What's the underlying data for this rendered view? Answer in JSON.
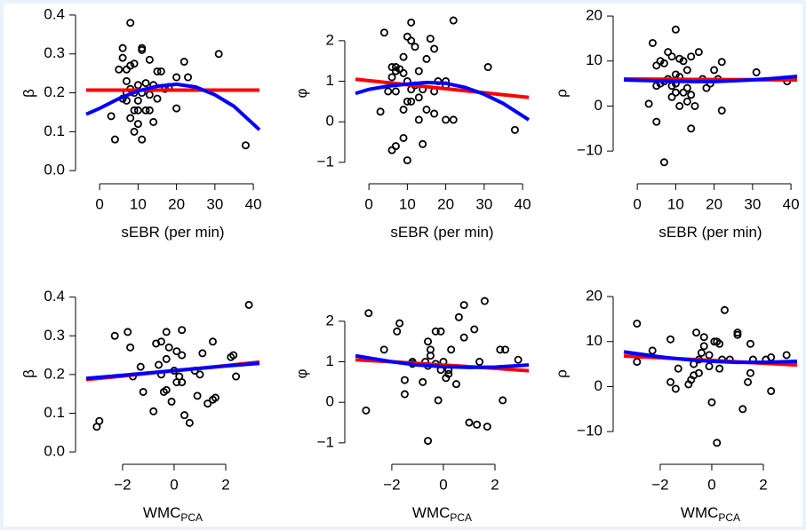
{
  "chart_data": [
    {
      "type": "scatter",
      "xlabel": "sEBR (per min)",
      "ylabel": "β",
      "xlim": [
        -3.5,
        41.6
      ],
      "ylim": [
        -0.011,
        0.409
      ],
      "xticks": [
        0,
        10,
        20,
        30,
        40
      ],
      "yticks": [
        {
          "value": 0,
          "label": "0.0"
        },
        0.1,
        0.2,
        0.3,
        0.4
      ],
      "series": [
        {
          "type": "scatter",
          "color": "#000000",
          "x": [
            8,
            6,
            11,
            11,
            6,
            9,
            8,
            13,
            5,
            7,
            15,
            16,
            22,
            20,
            23,
            31,
            7,
            10,
            12,
            14,
            18,
            8,
            7,
            9,
            11,
            13,
            6,
            7,
            10,
            15,
            17,
            9,
            10,
            12,
            13,
            20,
            14,
            8,
            3,
            10,
            9,
            11,
            4,
            38
          ],
          "values": [
            0.38,
            0.315,
            0.315,
            0.31,
            0.29,
            0.275,
            0.27,
            0.285,
            0.26,
            0.26,
            0.255,
            0.255,
            0.28,
            0.24,
            0.24,
            0.3,
            0.23,
            0.22,
            0.225,
            0.22,
            0.215,
            0.21,
            0.2,
            0.2,
            0.2,
            0.195,
            0.185,
            0.18,
            0.18,
            0.185,
            0.21,
            0.155,
            0.155,
            0.155,
            0.155,
            0.16,
            0.125,
            0.135,
            0.14,
            0.12,
            0.1,
            0.08,
            0.08,
            0.065
          ]
        },
        {
          "type": "line",
          "color": "#ff0000",
          "x": [
            -3.5,
            41.6
          ],
          "values": [
            0.207,
            0.207
          ]
        },
        {
          "type": "line",
          "color": "#0000ff",
          "x": [
            -3.5,
            0,
            5,
            10,
            15,
            20,
            25,
            30,
            35,
            41.6
          ],
          "values": [
            0.145,
            0.16,
            0.185,
            0.205,
            0.217,
            0.222,
            0.215,
            0.195,
            0.165,
            0.105
          ]
        }
      ]
    },
    {
      "type": "scatter",
      "xlabel": "sEBR (per min)",
      "ylabel": "φ",
      "xlim": [
        -3.5,
        41.6
      ],
      "ylim": [
        -1.31,
        2.72
      ],
      "xticks": [
        0,
        10,
        20,
        30,
        40
      ],
      "yticks": [
        {
          "value": -1,
          "label": "−1"
        },
        0,
        1,
        2
      ],
      "series": [
        {
          "type": "scatter",
          "color": "#000000",
          "x": [
            11,
            22,
            4,
            10,
            11,
            16,
            17,
            12,
            9,
            15,
            7,
            8,
            6,
            7,
            6,
            9,
            13,
            10,
            18,
            20,
            31,
            12,
            14,
            5,
            7,
            11,
            17,
            20,
            13,
            10,
            11,
            3,
            9,
            15,
            17,
            20,
            22,
            13,
            9,
            7,
            14,
            10,
            38,
            6
          ],
          "values": [
            2.45,
            2.5,
            2.2,
            2.1,
            2.0,
            2.05,
            1.8,
            1.85,
            1.6,
            1.55,
            1.35,
            1.3,
            1.35,
            1.25,
            1.1,
            1.2,
            1.25,
            1.0,
            1.0,
            1.0,
            1.35,
            0.9,
            0.8,
            0.75,
            0.75,
            0.8,
            0.75,
            0.9,
            0.6,
            0.5,
            0.5,
            0.25,
            0.3,
            0.3,
            0.2,
            0.05,
            0.05,
            0.05,
            -0.4,
            -0.6,
            -0.55,
            -0.95,
            -0.2,
            -0.7
          ]
        },
        {
          "type": "line",
          "color": "#ff0000",
          "x": [
            -3.5,
            41.6
          ],
          "values": [
            1.05,
            0.6
          ]
        },
        {
          "type": "line",
          "color": "#0000ff",
          "x": [
            -3.5,
            0,
            5,
            10,
            15,
            20,
            25,
            30,
            35,
            41.6
          ],
          "values": [
            0.7,
            0.8,
            0.88,
            0.93,
            0.97,
            0.95,
            0.85,
            0.68,
            0.45,
            0.05
          ]
        }
      ]
    },
    {
      "type": "scatter",
      "xlabel": "sEBR (per min)",
      "ylabel": "ρ",
      "xlim": [
        -3.5,
        41.6
      ],
      "ylim": [
        -15.3,
        21
      ],
      "xticks": [
        0,
        10,
        20,
        30,
        40
      ],
      "yticks": [
        {
          "value": -10,
          "label": "−10"
        },
        0,
        10,
        20
      ],
      "series": [
        {
          "type": "scatter",
          "color": "#000000",
          "x": [
            10,
            4,
            22,
            16,
            14,
            8,
            9,
            11,
            6,
            7,
            12,
            5,
            13,
            20,
            31,
            10,
            11,
            8,
            6,
            7,
            9,
            13,
            18,
            19,
            21,
            5,
            10,
            12,
            9,
            14,
            13,
            11,
            3,
            15,
            22,
            5,
            14,
            7,
            39,
            10,
            17
          ],
          "values": [
            17,
            14,
            9.8,
            12,
            11,
            12,
            11,
            10.5,
            10,
            9.5,
            10,
            9,
            8,
            8,
            7.5,
            7,
            6.5,
            6,
            5,
            5.5,
            4.5,
            4,
            4,
            5,
            6,
            4.5,
            3,
            3,
            2,
            2.5,
            1,
            0,
            0.5,
            0,
            -1,
            -3.5,
            -5,
            -12.5,
            5.5,
            5,
            6
          ]
        },
        {
          "type": "line",
          "color": "#ff0000",
          "x": [
            -3.5,
            41.6
          ],
          "values": [
            6.0,
            5.8
          ]
        },
        {
          "type": "line",
          "color": "#0000ff",
          "x": [
            -3.5,
            0,
            5,
            10,
            15,
            20,
            25,
            30,
            35,
            41.6
          ],
          "values": [
            5.8,
            5.7,
            5.6,
            5.5,
            5.45,
            5.45,
            5.6,
            5.8,
            6.1,
            6.6
          ]
        }
      ]
    },
    {
      "type": "scatter",
      "xlabel": "WMC",
      "xlabel_sub": "PCA",
      "ylabel": "β",
      "xlim": [
        -3.41,
        3.31
      ],
      "ylim": [
        -0.009,
        0.413
      ],
      "xticks": [
        {
          "value": -2,
          "label": "−2"
        },
        0,
        2
      ],
      "yticks": [
        {
          "value": 0,
          "label": "0.0"
        },
        0.1,
        0.2,
        0.3,
        0.4
      ],
      "series": [
        {
          "type": "scatter",
          "color": "#000000",
          "x": [
            2.9,
            -1.8,
            -2.3,
            0.3,
            -0.3,
            -0.5,
            -0.7,
            1.5,
            -0.2,
            -1.7,
            0.1,
            0.3,
            1.1,
            2.2,
            2.3,
            -0.3,
            -0.6,
            -1.3,
            0,
            0.8,
            -0.5,
            0.2,
            1.0,
            -1.6,
            2.4,
            0.1,
            0.3,
            -0.3,
            -0.4,
            -1.2,
            1.5,
            1.6,
            1.3,
            0.9,
            -0.1,
            0.4,
            -0.8,
            0.6,
            -2.9,
            -3.0
          ],
          "values": [
            0.38,
            0.31,
            0.3,
            0.315,
            0.31,
            0.285,
            0.28,
            0.285,
            0.27,
            0.27,
            0.26,
            0.25,
            0.255,
            0.245,
            0.25,
            0.24,
            0.225,
            0.22,
            0.21,
            0.21,
            0.2,
            0.195,
            0.2,
            0.195,
            0.195,
            0.18,
            0.18,
            0.16,
            0.155,
            0.155,
            0.135,
            0.14,
            0.125,
            0.145,
            0.13,
            0.095,
            0.105,
            0.075,
            0.08,
            0.065
          ]
        },
        {
          "type": "line",
          "color": "#ff0000",
          "x": [
            -3.41,
            -2,
            -1,
            0,
            1,
            2,
            3.31
          ],
          "values": [
            0.187,
            0.196,
            0.203,
            0.21,
            0.216,
            0.223,
            0.232
          ]
        },
        {
          "type": "line",
          "color": "#0000ff",
          "x": [
            -3.41,
            -2,
            -1,
            0,
            1,
            2,
            3.31
          ],
          "values": [
            0.19,
            0.198,
            0.204,
            0.21,
            0.216,
            0.222,
            0.229
          ]
        }
      ]
    },
    {
      "type": "scatter",
      "xlabel": "WMC",
      "xlabel_sub": "PCA",
      "ylabel": "φ",
      "xlim": [
        -3.41,
        3.31
      ],
      "ylim": [
        -1.31,
        2.72
      ],
      "xticks": [
        {
          "value": -2,
          "label": "−2"
        },
        0,
        2
      ],
      "yticks": [
        {
          "value": -1,
          "label": "−1"
        },
        0,
        1,
        2
      ],
      "series": [
        {
          "type": "scatter",
          "color": "#000000",
          "x": [
            -2.9,
            1.6,
            0.8,
            0.6,
            -1.7,
            -1.8,
            -0.3,
            -0.1,
            1.2,
            0.8,
            -0.6,
            -2.3,
            2.2,
            2.4,
            -0.5,
            -0.5,
            0.3,
            -1.2,
            2.9,
            -0.7,
            -0.3,
            0,
            1.4,
            0.2,
            0.2,
            -0.6,
            -0.1,
            -1.5,
            -0.8,
            0.5,
            -0.2,
            -1.5,
            2.3,
            0.1,
            1.0,
            1.3,
            1.7,
            -3.0,
            -0.6,
            -1.2
          ],
          "values": [
            2.2,
            2.5,
            2.4,
            2.1,
            1.95,
            1.75,
            1.75,
            1.75,
            1.8,
            1.6,
            1.5,
            1.3,
            1.3,
            1.3,
            1.3,
            1.15,
            1.3,
            1.0,
            1.05,
            1.0,
            0.95,
            1.0,
            1.0,
            0.8,
            0.7,
            0.9,
            0.8,
            0.55,
            0.5,
            0.45,
            0.05,
            0.2,
            0.05,
            0.6,
            -0.5,
            -0.55,
            -0.6,
            -0.2,
            -0.95,
            0.95
          ]
        },
        {
          "type": "line",
          "color": "#ff0000",
          "x": [
            -3.41,
            -2,
            -1,
            0,
            1,
            2,
            3.31
          ],
          "values": [
            1.05,
            1.0,
            0.96,
            0.92,
            0.88,
            0.84,
            0.78
          ]
        },
        {
          "type": "line",
          "color": "#0000ff",
          "x": [
            -3.41,
            -2,
            -1,
            0,
            1,
            2,
            3.31
          ],
          "values": [
            1.15,
            1.0,
            0.92,
            0.88,
            0.86,
            0.87,
            0.92
          ]
        }
      ]
    },
    {
      "type": "scatter",
      "xlabel": "WMC",
      "xlabel_sub": "PCA",
      "ylabel": "ρ",
      "xlim": [
        -3.41,
        3.31
      ],
      "ylim": [
        -15.3,
        21
      ],
      "xticks": [
        {
          "value": -2,
          "label": "−2"
        },
        0,
        2
      ],
      "yticks": [
        {
          "value": -10,
          "label": "−10"
        },
        0,
        10,
        20
      ],
      "series": [
        {
          "type": "scatter",
          "color": "#000000",
          "x": [
            -2.9,
            0.5,
            -1.6,
            -0.6,
            1,
            1,
            -0.3,
            0.1,
            0.3,
            0.2,
            -0.3,
            -2.3,
            1.5,
            2.9,
            -0.4,
            -0.1,
            0.7,
            -0.5,
            0.4,
            1.6,
            2.1,
            2.3,
            -2.9,
            -0.7,
            -1.3,
            -0.1,
            0.3,
            -0.5,
            -0.7,
            1.5,
            -1.6,
            -0.9,
            1.4,
            -1.4,
            2.3,
            1.2,
            0,
            0.2,
            -0.8
          ],
          "values": [
            14,
            17,
            10.5,
            12,
            12,
            11.5,
            11,
            10,
            9.5,
            10,
            9,
            8,
            9.5,
            7,
            7.5,
            7,
            6,
            6,
            6,
            6,
            6,
            6.5,
            5.5,
            5,
            4,
            4.5,
            4,
            3,
            2.5,
            3,
            1,
            0.5,
            1,
            -0.5,
            -1,
            -5,
            -3.5,
            -12.5,
            1.5
          ]
        },
        {
          "type": "line",
          "color": "#ff0000",
          "x": [
            -3.41,
            -2,
            -1,
            0,
            1,
            2,
            3.31
          ],
          "values": [
            6.8,
            6.4,
            6.1,
            5.8,
            5.5,
            5.2,
            4.8
          ]
        },
        {
          "type": "line",
          "color": "#0000ff",
          "x": [
            -3.41,
            -2,
            -1,
            0,
            1,
            2,
            3.31
          ],
          "values": [
            7.7,
            6.6,
            6.0,
            5.6,
            5.4,
            5.4,
            5.6
          ]
        }
      ]
    }
  ]
}
